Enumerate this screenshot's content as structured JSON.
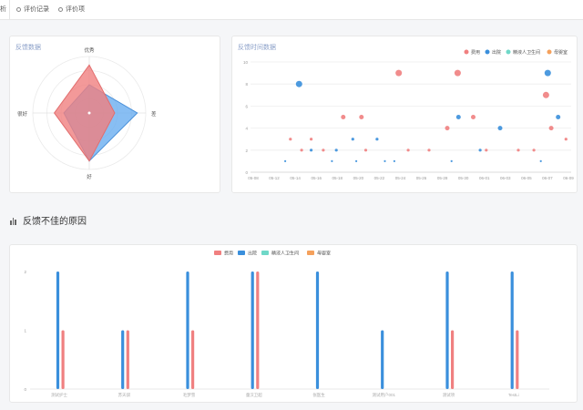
{
  "tabs": [
    {
      "label": "析"
    },
    {
      "label": "评价记录"
    },
    {
      "label": "评价项"
    }
  ],
  "radar_card": {
    "title": "反馈数据"
  },
  "scatter_card": {
    "title": "反馈时间数据"
  },
  "section": {
    "title": "反馈不佳的原因"
  },
  "colors": {
    "red": "#f08080",
    "blue": "#3a8fdc",
    "teal": "#6fd8c8",
    "orange": "#f5a15c"
  },
  "chart_data": [
    {
      "type": "radar",
      "indicators": [
        "优秀",
        "差",
        "好",
        "很好"
      ],
      "series": [
        {
          "values": [
            0.5,
            0.85,
            0.85,
            0.45
          ],
          "color": "#6aaef0"
        },
        {
          "values": [
            0.85,
            0.45,
            0.85,
            0.62
          ],
          "color": "#f08080"
        }
      ]
    },
    {
      "type": "scatter",
      "legend": [
        "费用",
        "出院",
        "精液人卫生间",
        "母婴室"
      ],
      "legend_position": "top-right",
      "x_labels": [
        "05-08",
        "05-12",
        "05-14",
        "05-16",
        "05-18",
        "05-20",
        "05-22",
        "05-24",
        "05-26",
        "05-28",
        "05-30",
        "06-01",
        "06-03",
        "06-05",
        "06-07",
        "06-09"
      ],
      "ylim": [
        0,
        10
      ],
      "yticks": [
        0,
        2,
        4,
        6,
        8,
        10
      ],
      "points": [
        {
          "x": 4.6,
          "y": 3,
          "s": 0
        },
        {
          "x": 5.9,
          "y": 2,
          "s": 0
        },
        {
          "x": 7.0,
          "y": 3,
          "s": 0
        },
        {
          "x": 8.4,
          "y": 2,
          "s": 0
        },
        {
          "x": 10.7,
          "y": 5,
          "s": 0
        },
        {
          "x": 12.8,
          "y": 5,
          "s": 0
        },
        {
          "x": 13.3,
          "y": 2,
          "s": 0
        },
        {
          "x": 17.1,
          "y": 9,
          "s": 0
        },
        {
          "x": 18.2,
          "y": 2,
          "s": 0
        },
        {
          "x": 20.6,
          "y": 2,
          "s": 0
        },
        {
          "x": 22.7,
          "y": 4,
          "s": 0
        },
        {
          "x": 23.9,
          "y": 9,
          "s": 0
        },
        {
          "x": 25.7,
          "y": 5,
          "s": 0
        },
        {
          "x": 27.2,
          "y": 2,
          "s": 0
        },
        {
          "x": 30.9,
          "y": 2,
          "s": 0
        },
        {
          "x": 32.7,
          "y": 2,
          "s": 0
        },
        {
          "x": 34.1,
          "y": 7,
          "s": 0
        },
        {
          "x": 34.7,
          "y": 4,
          "s": 0
        },
        {
          "x": 36.4,
          "y": 3,
          "s": 0
        },
        {
          "x": 4.0,
          "y": 1,
          "s": 1
        },
        {
          "x": 5.6,
          "y": 8,
          "s": 1
        },
        {
          "x": 7.0,
          "y": 2,
          "s": 1
        },
        {
          "x": 9.4,
          "y": 1,
          "s": 1
        },
        {
          "x": 9.9,
          "y": 2,
          "s": 1
        },
        {
          "x": 11.8,
          "y": 3,
          "s": 1
        },
        {
          "x": 14.6,
          "y": 3,
          "s": 1
        },
        {
          "x": 15.5,
          "y": 1,
          "s": 1
        },
        {
          "x": 16.6,
          "y": 1,
          "s": 1
        },
        {
          "x": 23.2,
          "y": 1,
          "s": 1
        },
        {
          "x": 24.0,
          "y": 5,
          "s": 1
        },
        {
          "x": 26.5,
          "y": 2,
          "s": 1
        },
        {
          "x": 28.8,
          "y": 4,
          "s": 1
        },
        {
          "x": 33.5,
          "y": 1,
          "s": 1
        },
        {
          "x": 34.3,
          "y": 9,
          "s": 1
        },
        {
          "x": 35.5,
          "y": 5,
          "s": 1
        },
        {
          "x": 12.2,
          "y": 1,
          "s": 1
        }
      ]
    },
    {
      "type": "bar",
      "legend": [
        "费用",
        "出院",
        "精液人卫生间",
        "母婴室"
      ],
      "legend_position": "top",
      "categories": [
        "测试护士",
        "苏天骐",
        "毛梦雪",
        "童汉卫超",
        "张医生",
        "测试用户001",
        "测试项",
        "TestLi"
      ],
      "ylim": [
        0,
        2
      ],
      "yticks": [
        0,
        1,
        2
      ],
      "series": [
        {
          "name": "费用",
          "values": [
            1,
            1,
            1,
            2,
            0,
            0,
            1,
            1
          ]
        },
        {
          "name": "出院",
          "values": [
            2,
            1,
            2,
            2,
            2,
            1,
            2,
            2
          ]
        },
        {
          "name": "精液人卫生间",
          "values": [
            0,
            0,
            0,
            0,
            0,
            0,
            0,
            0
          ]
        },
        {
          "name": "母婴室",
          "values": [
            0,
            0,
            0,
            0,
            0,
            0,
            0,
            0
          ]
        }
      ]
    }
  ]
}
